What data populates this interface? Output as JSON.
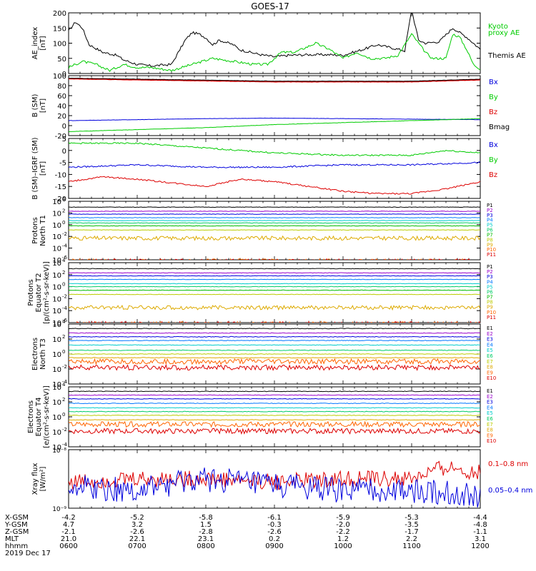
{
  "title": "GOES-17",
  "colors": {
    "black": "#000000",
    "green": "#00cc00",
    "blue": "#0000dd",
    "red": "#dd0000",
    "P": [
      "#000000",
      "#9900cc",
      "#0000dd",
      "#0077ff",
      "#00cccc",
      "#00cc66",
      "#00bb00",
      "#bbcc00",
      "#ddaa00",
      "#ff6600",
      "#dd0000"
    ],
    "E": [
      "#000000",
      "#9900cc",
      "#0000dd",
      "#0077ff",
      "#00cccc",
      "#00cc66",
      "#bbcc00",
      "#ddaa00",
      "#ff6600",
      "#dd0000"
    ]
  },
  "chart_data": [
    {
      "type": "line",
      "ylabel_lines": [
        "AE_index",
        "[nT]"
      ],
      "ylim": [
        0,
        200
      ],
      "yticks": [
        0,
        50,
        100,
        150,
        200
      ],
      "legend": [
        "Kyoto",
        "proxy AE",
        "Themis AE"
      ],
      "series": [
        {
          "name": "Themis AE",
          "x": [
            0.0,
            0.1,
            0.2,
            0.3,
            0.5,
            0.7,
            0.8,
            1.0,
            1.2,
            1.5,
            1.7,
            1.8,
            1.9,
            2.0,
            2.1,
            2.2,
            2.4,
            2.5,
            2.8,
            3.0,
            3.2,
            3.5,
            3.8,
            4.0,
            4.3,
            4.5,
            4.7,
            4.9,
            5.0,
            5.1,
            5.2,
            5.4,
            5.6,
            5.8,
            6.0
          ],
          "values": [
            140,
            170,
            150,
            95,
            70,
            60,
            45,
            30,
            25,
            30,
            110,
            135,
            130,
            118,
            95,
            110,
            95,
            78,
            62,
            55,
            60,
            62,
            62,
            60,
            80,
            95,
            85,
            75,
            210,
            110,
            100,
            105,
            150,
            120,
            80
          ]
        },
        {
          "name": "proxy AE",
          "x": [
            0.0,
            0.2,
            0.4,
            0.6,
            0.8,
            1.0,
            1.2,
            1.5,
            1.8,
            2.1,
            2.4,
            2.7,
            2.9,
            3.1,
            3.3,
            3.6,
            3.8,
            4.0,
            4.2,
            4.4,
            4.6,
            4.8,
            5.0,
            5.2,
            5.3,
            5.5,
            5.6,
            5.7,
            5.8,
            5.9,
            6.0
          ],
          "values": [
            20,
            40,
            30,
            10,
            30,
            20,
            20,
            10,
            30,
            50,
            40,
            30,
            30,
            70,
            70,
            100,
            80,
            50,
            70,
            50,
            50,
            60,
            130,
            70,
            50,
            50,
            130,
            120,
            80,
            30,
            15
          ]
        }
      ],
      "time_labels": [
        "0600",
        "0700",
        "0800",
        "0900",
        "1000",
        "1100",
        "1200"
      ]
    },
    {
      "type": "line",
      "ylabel_lines": [
        "B (SM)",
        "[nT]"
      ],
      "ylim": [
        -20,
        100
      ],
      "yticks": [
        -20,
        0,
        20,
        40,
        60,
        80,
        100
      ],
      "legend": [
        "Bx",
        "By",
        "Bz",
        "Bmag"
      ],
      "series": [
        {
          "name": "Bx",
          "x": [
            0,
            1,
            2,
            3,
            4,
            5,
            6
          ],
          "values": [
            10,
            12,
            14,
            15,
            14,
            13,
            12
          ]
        },
        {
          "name": "By",
          "x": [
            0,
            1,
            2,
            3,
            4,
            5,
            6
          ],
          "values": [
            -12,
            -8,
            -4,
            2,
            6,
            10,
            14
          ]
        },
        {
          "name": "Bz",
          "x": [
            0,
            1,
            2,
            3,
            4,
            5,
            6
          ],
          "values": [
            94,
            92,
            90,
            88,
            88,
            88,
            92
          ]
        },
        {
          "name": "Bmag",
          "x": [
            0,
            1,
            2,
            3,
            4,
            5,
            6
          ],
          "values": [
            95,
            93,
            91,
            89,
            89,
            89,
            93
          ]
        }
      ]
    },
    {
      "type": "line",
      "ylabel_lines": [
        "B (SM)–IGRF (SM)",
        "[nT]"
      ],
      "ylim": [
        -20,
        5
      ],
      "yticks": [
        -20,
        -15,
        -10,
        -5,
        0,
        5
      ],
      "legend": [
        "Bx",
        "By",
        "Bz"
      ],
      "series": [
        {
          "name": "Bx",
          "x": [
            0,
            1,
            2,
            3,
            4,
            5,
            6
          ],
          "values": [
            -7,
            -6,
            -7,
            -7,
            -6,
            -6,
            -5
          ]
        },
        {
          "name": "By",
          "x": [
            0,
            1,
            2,
            3,
            4,
            5,
            5.5,
            6
          ],
          "values": [
            3,
            3,
            1,
            -1,
            -2,
            -2,
            0,
            -1
          ]
        },
        {
          "name": "Bz",
          "x": [
            0,
            0.5,
            1,
            2,
            2.5,
            3,
            3.5,
            4,
            4.5,
            5,
            5.5,
            6
          ],
          "values": [
            -13,
            -11,
            -12,
            -15,
            -12,
            -13,
            -15,
            -17,
            -18,
            -18,
            -16,
            -13
          ]
        }
      ]
    },
    {
      "type": "line",
      "ylabel_lines": [
        "Protons",
        "North T1"
      ],
      "ylog": true,
      "ylim": [
        -6,
        4
      ],
      "yticks": [
        4,
        2,
        0,
        -2,
        -4,
        -6
      ],
      "legend": [
        "P1",
        "P2",
        "P3",
        "P4",
        "P5",
        "P6",
        "P7",
        "P8",
        "P9",
        "P10",
        "P11"
      ],
      "levels": [
        3.0,
        2.3,
        1.8,
        1.2,
        0.7,
        0.3,
        -0.2,
        -0.9,
        -2.3,
        -6.2,
        -6.2
      ]
    },
    {
      "type": "line",
      "ylabel_lines": [
        "Protons",
        "Equator T2",
        "[p/(cm²-s-sr-keV)]"
      ],
      "ylog": true,
      "ylim": [
        -6,
        4
      ],
      "yticks": [
        4,
        2,
        0,
        -2,
        -4,
        -6
      ],
      "legend": [
        "P1",
        "P2",
        "P3",
        "P4",
        "P5",
        "P6",
        "P7",
        "P8",
        "P9",
        "P10",
        "P11"
      ],
      "levels": [
        3.0,
        2.3,
        1.8,
        1.2,
        0.5,
        0.0,
        -0.6,
        -1.3,
        -3.5,
        -6.2,
        -6.2
      ]
    },
    {
      "type": "line",
      "ylabel_lines": [
        "Electrons",
        "North T3"
      ],
      "ylog": true,
      "ylim": [
        -4,
        4
      ],
      "yticks": [
        4,
        2,
        0,
        -2,
        -4
      ],
      "legend": [
        "E1",
        "E2",
        "E3",
        "E4",
        "E5",
        "E6",
        "E7",
        "E8",
        "E9",
        "E10"
      ],
      "levels": [
        3.4,
        2.8,
        2.3,
        1.8,
        1.2,
        0.5,
        0.0,
        -0.5,
        -1.0,
        -1.8
      ]
    },
    {
      "type": "line",
      "ylabel_lines": [
        "Electrons",
        "Equator T4",
        "[e/(cm²-s-sr-keV)]"
      ],
      "ylog": true,
      "ylim": [
        -4,
        4
      ],
      "yticks": [
        4,
        2,
        0,
        -2,
        -4
      ],
      "legend": [
        "E1",
        "E2",
        "E3",
        "E4",
        "E5",
        "E6",
        "E7",
        "E8",
        "E9",
        "E10"
      ],
      "levels": [
        3.4,
        2.9,
        2.4,
        1.8,
        1.2,
        0.7,
        0.2,
        -0.4,
        -1.0,
        -1.9
      ]
    },
    {
      "type": "line",
      "ylabel_lines": [
        "Xray flux",
        "[W/m²]"
      ],
      "ylog": true,
      "ylim": [
        -9,
        -8
      ],
      "ytick_labels": [
        "10⁻⁸",
        "10⁻⁹"
      ],
      "legend": [
        "0.1–0.8 nm",
        "0.05–0.4 nm"
      ],
      "series": [
        {
          "name": "0.1–0.8 nm",
          "x": [
            0,
            1,
            2,
            3,
            4,
            5,
            5.5,
            6
          ],
          "values": [
            -8.55,
            -8.5,
            -8.5,
            -8.55,
            -8.5,
            -8.5,
            -8.3,
            -8.4
          ]
        },
        {
          "name": "0.05–0.4 nm",
          "x": [
            0,
            1,
            2,
            3,
            4,
            5,
            6
          ],
          "values": [
            -8.6,
            -8.7,
            -8.5,
            -8.6,
            -8.7,
            -8.7,
            -8.8
          ]
        }
      ]
    }
  ],
  "ephemeris": {
    "labels": [
      "X-GSM",
      "Y-GSM",
      "Z-GSM",
      "MLT",
      "hhmm",
      "2019 Dec 17"
    ],
    "rows": [
      [
        "-4.2",
        "-5.2",
        "-5.8",
        "-6.1",
        "-5.9",
        "-5.3",
        "-4.4"
      ],
      [
        "4.7",
        "3.2",
        "1.5",
        "-0.3",
        "-2.0",
        "-3.5",
        "-4.8"
      ],
      [
        "-2.1",
        "-2.6",
        "-2.8",
        "-2.6",
        "-2.2",
        "-1.7",
        "-1.1"
      ],
      [
        "21.0",
        "22.1",
        "23.1",
        "0.2",
        "1.2",
        "2.2",
        "3.1"
      ],
      [
        "0600",
        "0700",
        "0800",
        "0900",
        "1000",
        "1100",
        "1200"
      ]
    ]
  }
}
